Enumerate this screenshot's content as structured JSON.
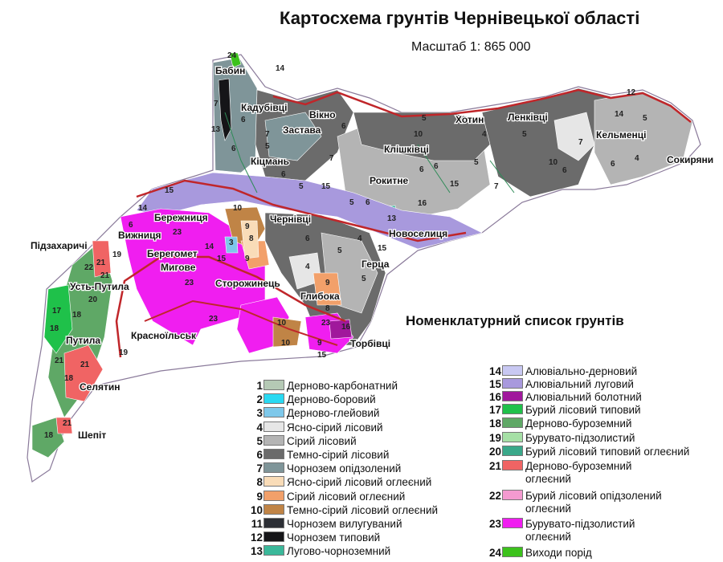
{
  "title": "Картосхема грунтів Чернівецької області",
  "scale": "Масштаб 1: 865 000",
  "legend_title": "Номенклатурний список грунтів",
  "legend": [
    {
      "num": "1",
      "label": "Дерново-карбонатний",
      "color": "#b5c9b5"
    },
    {
      "num": "2",
      "label": "Дерново-боровий",
      "color": "#29d9f2"
    },
    {
      "num": "3",
      "label": "Дерново-глейовий",
      "color": "#7ec8ea"
    },
    {
      "num": "4",
      "label": "Ясно-сірий лісовий",
      "color": "#e6e6e6"
    },
    {
      "num": "5",
      "label": "Сірий лісовий",
      "color": "#b4b4b4"
    },
    {
      "num": "6",
      "label": "Темно-сірий лісовий",
      "color": "#6b6b6b"
    },
    {
      "num": "7",
      "label": "Чорнозем опідзолений",
      "color": "#7f9599"
    },
    {
      "num": "8",
      "label": "Ясно-сірий лісовий оглеєний",
      "color": "#f9dcb8"
    },
    {
      "num": "9",
      "label": "Сірий лісовий оглеєний",
      "color": "#f2a06a"
    },
    {
      "num": "10",
      "label": "Темно-сірий лісовий оглеєний",
      "color": "#c08446"
    },
    {
      "num": "11",
      "label": "Чорнозем вилугуваний",
      "color": "#2c2f35"
    },
    {
      "num": "12",
      "label": "Чорнозем типовий",
      "color": "#151518"
    },
    {
      "num": "13",
      "label": "Лугово-чорноземний",
      "color": "#3bb89a"
    },
    {
      "num": "14",
      "label": "Алювіально-дерновий",
      "color": "#c8c8f2"
    },
    {
      "num": "15",
      "label": "Алювіальний луговий",
      "color": "#a899dd"
    },
    {
      "num": "16",
      "label": "Алювіальний болотний",
      "color": "#a0189c"
    },
    {
      "num": "17",
      "label": "Бурий лісовий типовий",
      "color": "#1fc14a"
    },
    {
      "num": "18",
      "label": "Дерново-буроземний",
      "color": "#5fa866"
    },
    {
      "num": "19",
      "label": "Бурувато-підзолистий",
      "color": "#a6e0a6"
    },
    {
      "num": "20",
      "label": "Бурий лісовий типовий оглеєний",
      "color": "#3aa88a"
    },
    {
      "num": "21",
      "label": "Дерново-буроземний",
      "label2": "оглеєний",
      "color": "#f06464"
    },
    {
      "num": "22",
      "label": "Бурий лісовий опідзолений",
      "label2": "оглеєний",
      "color": "#f49ad0"
    },
    {
      "num": "23",
      "label": "Бурувато-підзолистий",
      "label2": "оглеєний",
      "color": "#f01ef0"
    },
    {
      "num": "24",
      "label": "Виходи порід",
      "color": "#3cc21c"
    }
  ],
  "towns": [
    "Бабин",
    "Кадубівці",
    "Вікно",
    "Застава",
    "Кіцмань",
    "Хотин",
    "Клішківці",
    "Ленківці",
    "Кельменці",
    "Сокиряни",
    "Рокитне",
    "Чернівці",
    "Новоселиця",
    "Бережниця",
    "Вижниця",
    "Берегомет",
    "Мигове",
    "Сторожинець",
    "Глибока",
    "Герца",
    "Підзахаричі",
    "Усть-Путила",
    "Путила",
    "Селятин",
    "Шепіт",
    "Красноїльськ",
    "Торбівці"
  ],
  "map_numbers": [
    "14",
    "24",
    "7",
    "13",
    "6",
    "5",
    "7",
    "6",
    "6",
    "5",
    "7",
    "6",
    "10",
    "6",
    "5",
    "4",
    "5",
    "6",
    "7",
    "10",
    "6",
    "5",
    "4",
    "12",
    "14",
    "15",
    "16",
    "15",
    "15",
    "14",
    "6",
    "10",
    "9",
    "8",
    "3",
    "23",
    "23",
    "23",
    "15",
    "14",
    "9",
    "10",
    "9",
    "8",
    "5",
    "6",
    "4",
    "5",
    "23",
    "9",
    "10",
    "16",
    "15",
    "18",
    "21",
    "22",
    "21",
    "17",
    "18",
    "21",
    "18",
    "21",
    "18",
    "21",
    "20",
    "19",
    "19",
    "15",
    "7",
    "5",
    "13",
    "6",
    "4",
    "5",
    "6"
  ],
  "colors": {
    "border": "#c0262a",
    "outline": "#8a7a9a"
  }
}
